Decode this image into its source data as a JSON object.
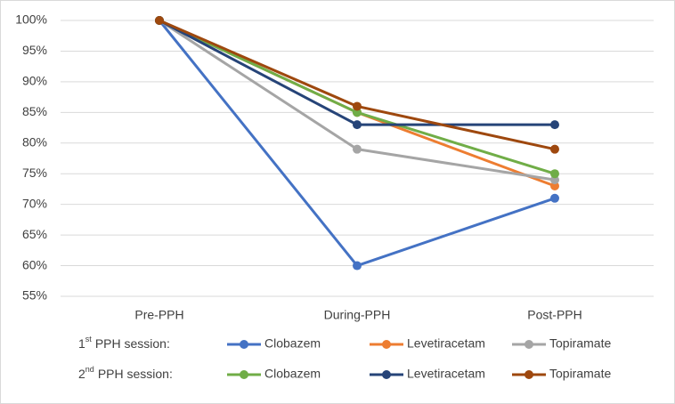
{
  "chart_data": {
    "type": "line",
    "categories": [
      "Pre-PPH",
      "During-PPH",
      "Post-PPH"
    ],
    "ylim": [
      55,
      100
    ],
    "yticks": [
      {
        "value": 55,
        "label": "55%"
      },
      {
        "value": 60,
        "label": "60%"
      },
      {
        "value": 65,
        "label": "65%"
      },
      {
        "value": 70,
        "label": "70%"
      },
      {
        "value": 75,
        "label": "75%"
      },
      {
        "value": 80,
        "label": "80%"
      },
      {
        "value": 85,
        "label": "85%"
      },
      {
        "value": 90,
        "label": "90%"
      },
      {
        "value": 95,
        "label": "95%"
      },
      {
        "value": 100,
        "label": "100%"
      }
    ],
    "grid": true,
    "legend_rows": [
      {
        "prefix": "1",
        "sup": "st",
        "suffix": "PPH session:"
      },
      {
        "prefix": "2",
        "sup": "nd",
        "suffix": "PPH session:"
      }
    ],
    "series": [
      {
        "name": "Clobazem",
        "color": "#4472c4",
        "values": [
          100,
          60,
          71
        ]
      },
      {
        "name": "Levetiracetam",
        "color": "#ed7d31",
        "values": [
          100,
          85,
          73
        ]
      },
      {
        "name": "Topiramate",
        "color": "#a5a5a5",
        "values": [
          100,
          79,
          74
        ]
      },
      {
        "name": "Clobazem",
        "color": "#70ad47",
        "values": [
          100,
          85,
          75
        ]
      },
      {
        "name": "Levetiracetam",
        "color": "#264478",
        "values": [
          100,
          83,
          83
        ]
      },
      {
        "name": "Topiramate",
        "color": "#9e480e",
        "values": [
          100,
          86,
          79
        ]
      }
    ]
  }
}
